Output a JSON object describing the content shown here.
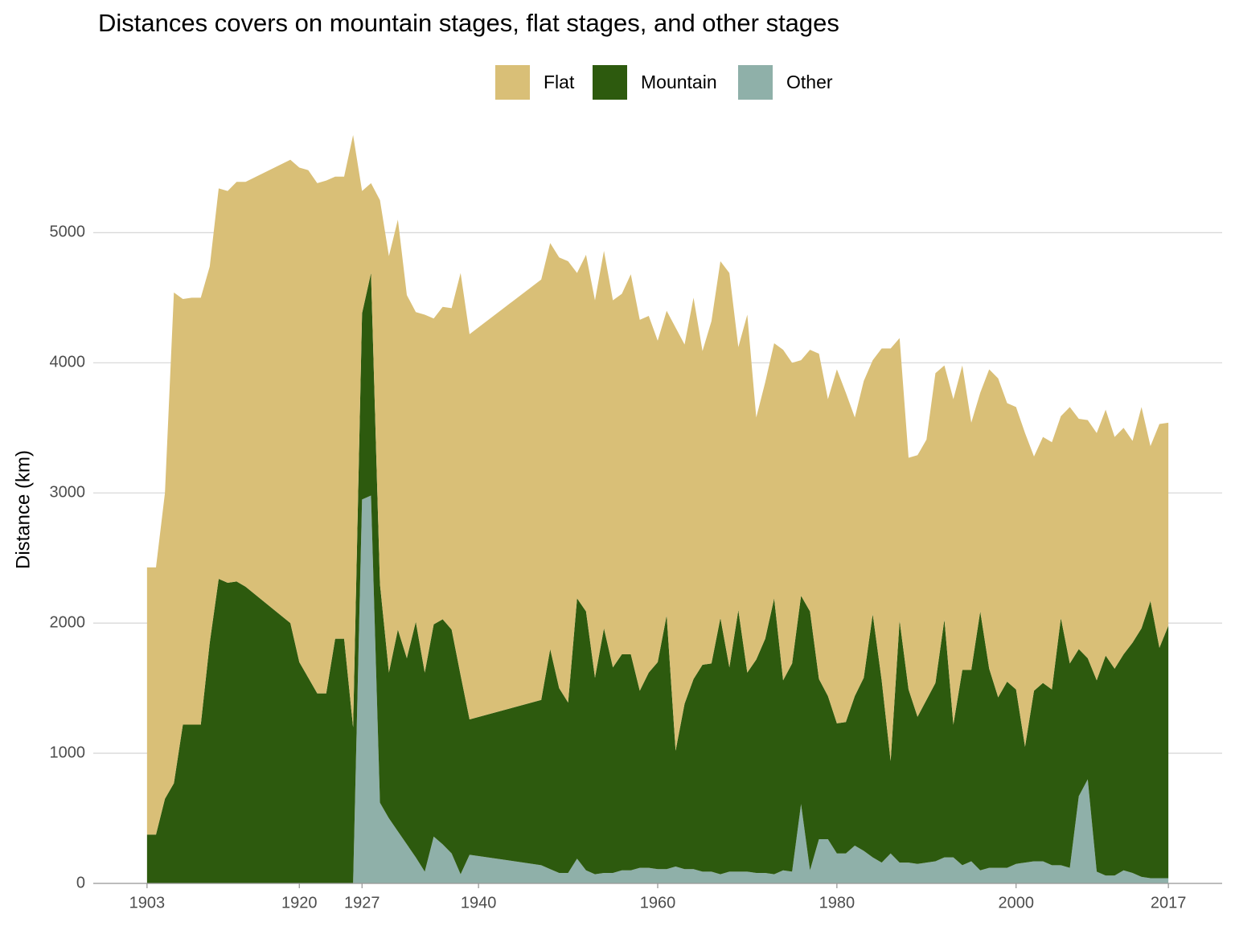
{
  "chart_data": {
    "type": "area",
    "title": "Distances covers on mountain stages, flat stages, and other stages",
    "y_label": "Distance (km)",
    "x": [
      1903,
      1904,
      1905,
      1906,
      1907,
      1908,
      1909,
      1910,
      1911,
      1912,
      1913,
      1914,
      1919,
      1920,
      1921,
      1922,
      1923,
      1924,
      1925,
      1926,
      1927,
      1928,
      1929,
      1930,
      1931,
      1932,
      1933,
      1934,
      1935,
      1936,
      1937,
      1938,
      1939,
      1947,
      1948,
      1949,
      1950,
      1951,
      1952,
      1953,
      1954,
      1955,
      1956,
      1957,
      1958,
      1959,
      1960,
      1961,
      1962,
      1963,
      1964,
      1965,
      1966,
      1967,
      1968,
      1969,
      1970,
      1971,
      1972,
      1973,
      1974,
      1975,
      1976,
      1977,
      1978,
      1979,
      1980,
      1981,
      1982,
      1983,
      1984,
      1985,
      1986,
      1987,
      1988,
      1989,
      1990,
      1991,
      1992,
      1993,
      1994,
      1995,
      1996,
      1997,
      1998,
      1999,
      2000,
      2001,
      2002,
      2003,
      2004,
      2005,
      2006,
      2007,
      2008,
      2009,
      2010,
      2011,
      2012,
      2013,
      2014,
      2015,
      2016,
      2017
    ],
    "series": [
      {
        "name": "Flat",
        "color": "#d9bf77",
        "values": [
          2053,
          2053,
          2350,
          3770,
          3270,
          3280,
          3280,
          2890,
          3000,
          3010,
          3070,
          3110,
          3560,
          3800,
          3900,
          3920,
          3940,
          3550,
          3550,
          4550,
          940,
          690,
          2950,
          3200,
          3150,
          2790,
          2380,
          2750,
          2350,
          2400,
          2470,
          3090,
          2960,
          3230,
          3120,
          3310,
          3390,
          2500,
          2740,
          2900,
          2900,
          2820,
          2770,
          2920,
          2850,
          2740,
          2470,
          2340,
          3250,
          2760,
          2930,
          2410,
          2630,
          2740,
          3030,
          2020,
          2750,
          1860,
          1970,
          1960,
          2540,
          2310,
          1810,
          2010,
          2500,
          2280,
          2720,
          2530,
          2140,
          2280,
          1950,
          2550,
          3170,
          2170,
          1780,
          2010,
          2000,
          2380,
          1950,
          2500,
          2340,
          1900,
          1680,
          2300,
          2450,
          2140,
          2170,
          2410,
          1800,
          1890,
          1900,
          1550,
          1970,
          1770,
          1830,
          1900,
          1890,
          1780,
          1740,
          1550,
          1700,
          1190,
          1720,
          1560
        ]
      },
      {
        "name": "Mountain",
        "color": "#2d5a0e",
        "values": [
          375,
          375,
          650,
          770,
          1220,
          1220,
          1220,
          1850,
          2340,
          2310,
          2320,
          2280,
          2000,
          1700,
          1580,
          1460,
          1460,
          1880,
          1880,
          1200,
          1430,
          1710,
          1680,
          1120,
          1550,
          1430,
          1810,
          1530,
          1630,
          1730,
          1720,
          1530,
          1040,
          1270,
          1690,
          1420,
          1310,
          2000,
          1990,
          1510,
          1880,
          1580,
          1660,
          1660,
          1360,
          1500,
          1590,
          1950,
          890,
          1270,
          1460,
          1590,
          1600,
          1970,
          1570,
          2010,
          1530,
          1640,
          1800,
          2120,
          1460,
          1600,
          1600,
          1990,
          1230,
          1100,
          1000,
          1010,
          1150,
          1330,
          1870,
          1400,
          710,
          1860,
          1330,
          1130,
          1250,
          1370,
          1830,
          1020,
          1500,
          1470,
          1990,
          1530,
          1310,
          1430,
          1340,
          890,
          1310,
          1370,
          1350,
          1900,
          1570,
          1130,
          930,
          1470,
          1690,
          1590,
          1660,
          1770,
          1910,
          2130,
          1770,
          1940
        ]
      },
      {
        "name": "Other",
        "color": "#8fb0a9",
        "values": [
          0,
          0,
          0,
          0,
          0,
          0,
          0,
          0,
          0,
          0,
          0,
          0,
          0,
          0,
          0,
          0,
          0,
          0,
          0,
          0,
          2950,
          2980,
          620,
          500,
          400,
          300,
          200,
          90,
          360,
          300,
          230,
          70,
          220,
          140,
          110,
          80,
          80,
          190,
          100,
          70,
          80,
          80,
          100,
          100,
          120,
          120,
          110,
          110,
          130,
          110,
          110,
          90,
          90,
          70,
          90,
          90,
          90,
          80,
          80,
          70,
          100,
          90,
          610,
          100,
          340,
          340,
          230,
          230,
          290,
          250,
          200,
          160,
          230,
          160,
          160,
          150,
          160,
          170,
          200,
          200,
          140,
          170,
          100,
          120,
          120,
          120,
          150,
          160,
          170,
          170,
          140,
          140,
          120,
          670,
          800,
          90,
          60,
          60,
          100,
          80,
          50,
          40,
          40,
          40
        ]
      }
    ],
    "xlim": [
      1897,
      2023
    ],
    "xticks": [
      1903,
      1920,
      1927,
      1940,
      1960,
      1980,
      2000,
      2017
    ],
    "ylim": [
      0,
      5750
    ],
    "yticks": [
      0,
      1000,
      2000,
      3000,
      4000,
      5000
    ],
    "grid": true,
    "legend": "top"
  }
}
